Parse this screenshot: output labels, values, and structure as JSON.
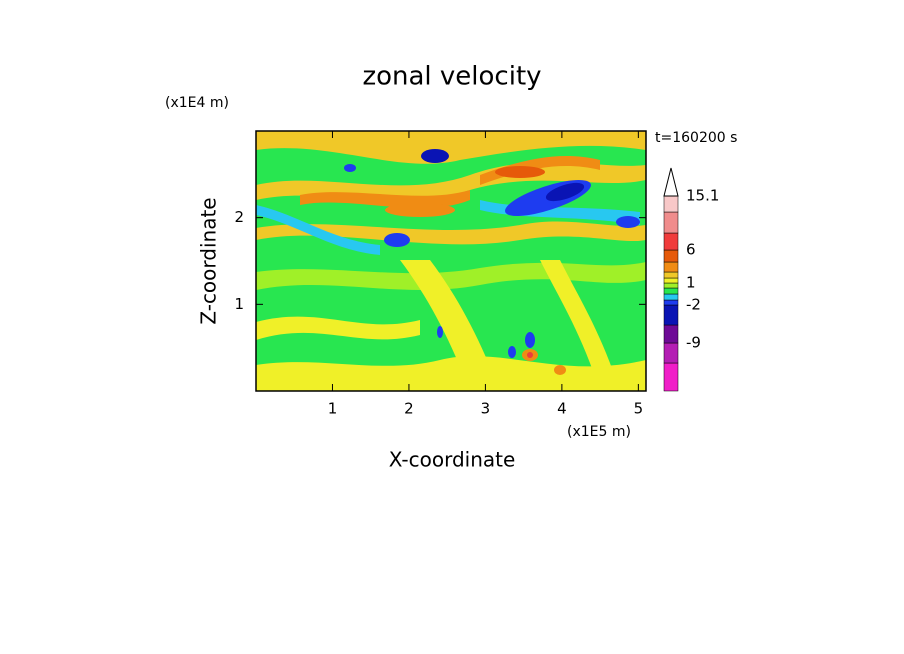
{
  "chart_data": {
    "type": "contour",
    "title": "zonal velocity",
    "x_label": "X-coordinate",
    "y_label": "Z-coordinate",
    "x_unit": "(x1E5 m)",
    "y_unit": "(x1E4 m)",
    "time_label": "t=160200 s",
    "xlim": [
      0,
      5.1
    ],
    "ylim": [
      0,
      3
    ],
    "xticks": [
      1,
      2,
      3,
      4,
      5
    ],
    "yticks": [
      1,
      2
    ],
    "colorbar": {
      "colors": [
        "#f01ec8",
        "#b41eb4",
        "#6e0a96",
        "#0a14b4",
        "#1e3cf0",
        "#28c8f0",
        "#28e650",
        "#a0f028",
        "#f0f028",
        "#f0c828",
        "#f08c14",
        "#e65a0a",
        "#f03c3c",
        "#f08c8c",
        "#f8c8c8"
      ],
      "labels": [
        -9,
        -2,
        1,
        6,
        15.1
      ]
    }
  }
}
